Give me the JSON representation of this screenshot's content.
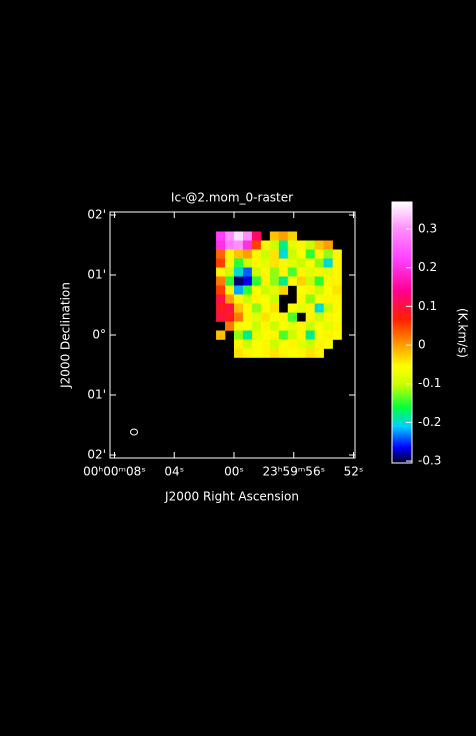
{
  "chart_data": {
    "type": "raster",
    "title": "Ic-@2.mom_0-raster",
    "x_label": "J2000 Right Ascension",
    "y_label": "J2000 Declination",
    "xlim": [
      8.3,
      -8.1
    ],
    "xticks": [
      {
        "value": 8,
        "label": "00ʰ00ᵐ08ˢ"
      },
      {
        "value": 4,
        "label": "04ˢ"
      },
      {
        "value": 0,
        "label": "00ˢ"
      },
      {
        "value": -4,
        "label": "23ʰ59ᵐ56ˢ"
      },
      {
        "value": -8,
        "label": "52ˢ"
      }
    ],
    "ylim": [
      -2.05,
      2.05
    ],
    "yticks": [
      {
        "value": 2,
        "label": "02'"
      },
      {
        "value": 1,
        "label": "01'"
      },
      {
        "value": 0,
        "label": "0°"
      },
      {
        "value": -1,
        "label": "01'"
      },
      {
        "value": -2,
        "label": "02'"
      }
    ],
    "x": [
      0.9,
      0.3,
      -0.3,
      -0.9,
      -1.5,
      -2.1,
      -2.7,
      -3.3,
      -3.9,
      -4.5,
      -5.1,
      -5.7,
      -6.3,
      -6.9
    ],
    "y": [
      1.65,
      1.5,
      1.35,
      1.2,
      1.05,
      0.9,
      0.75,
      0.6,
      0.45,
      0.3,
      0.15,
      0,
      -0.15,
      -0.3
    ],
    "z": [
      [
        0.22,
        0.3,
        0.35,
        0.3,
        0.12,
        null,
        -0.02,
        0,
        -0.03,
        null,
        null,
        null,
        null,
        null
      ],
      [
        0.2,
        0.28,
        0.3,
        0.2,
        0.05,
        -0.05,
        -0.1,
        -0.18,
        -0.08,
        -0.05,
        -0.1,
        -0.02,
        0,
        null
      ],
      [
        0.03,
        -0.05,
        -0.02,
        0,
        -0.05,
        -0.1,
        -0.04,
        -0.2,
        -0.1,
        -0.06,
        -0.15,
        -0.05,
        -0.12,
        -0.05
      ],
      [
        0.05,
        -0.05,
        -0.15,
        -0.1,
        -0.05,
        -0.08,
        -0.04,
        -0.05,
        -0.08,
        -0.1,
        -0.06,
        -0.12,
        -0.2,
        -0.05
      ],
      [
        -0.05,
        -0.1,
        -0.2,
        -0.24,
        -0.1,
        -0.05,
        -0.12,
        -0.05,
        -0.14,
        -0.05,
        -0.08,
        -0.05,
        -0.08,
        -0.05
      ],
      [
        0.02,
        -0.15,
        -0.29,
        -0.27,
        -0.15,
        -0.05,
        -0.12,
        -0.18,
        -0.06,
        -0.03,
        -0.1,
        -0.15,
        -0.05,
        -0.05
      ],
      [
        0.05,
        -0.05,
        -0.22,
        -0.15,
        -0.06,
        -0.1,
        -0.08,
        -0.03,
        null,
        -0.06,
        -0.05,
        -0.1,
        -0.06,
        -0.04
      ],
      [
        0.1,
        0,
        -0.05,
        -0.1,
        -0.05,
        -0.06,
        -0.1,
        null,
        null,
        -0.05,
        -0.12,
        -0.06,
        -0.05,
        -0.05
      ],
      [
        0.08,
        0.1,
        -0.02,
        -0.05,
        -0.12,
        -0.06,
        -0.04,
        null,
        -0.06,
        -0.08,
        -0.05,
        -0.2,
        -0.1,
        -0.05
      ],
      [
        0.1,
        0.08,
        0.02,
        -0.05,
        -0.08,
        -0.04,
        -0.06,
        -0.05,
        -0.14,
        null,
        -0.05,
        -0.1,
        -0.05,
        -0.06
      ],
      [
        null,
        0.02,
        -0.05,
        -0.06,
        -0.1,
        -0.05,
        -0.1,
        -0.06,
        -0.08,
        -0.05,
        -0.1,
        -0.06,
        -0.08,
        -0.05
      ],
      [
        -0.02,
        null,
        -0.12,
        -0.18,
        -0.08,
        -0.06,
        -0.05,
        -0.14,
        -0.1,
        -0.05,
        -0.18,
        -0.06,
        -0.05,
        -0.06
      ],
      [
        null,
        null,
        -0.05,
        -0.1,
        -0.06,
        -0.05,
        -0.1,
        -0.06,
        -0.05,
        -0.08,
        -0.1,
        -0.05,
        -0.06,
        null
      ],
      [
        null,
        null,
        -0.04,
        -0.05,
        -0.06,
        -0.05,
        -0.04,
        -0.05,
        -0.06,
        -0.05,
        -0.04,
        -0.05,
        null,
        null
      ]
    ],
    "colorbar": {
      "label": "(K.km/s)",
      "lim": [
        -0.305,
        0.37
      ],
      "ticks": [
        -0.3,
        -0.2,
        -0.1,
        0,
        0.1,
        0.2,
        0.3
      ]
    }
  }
}
